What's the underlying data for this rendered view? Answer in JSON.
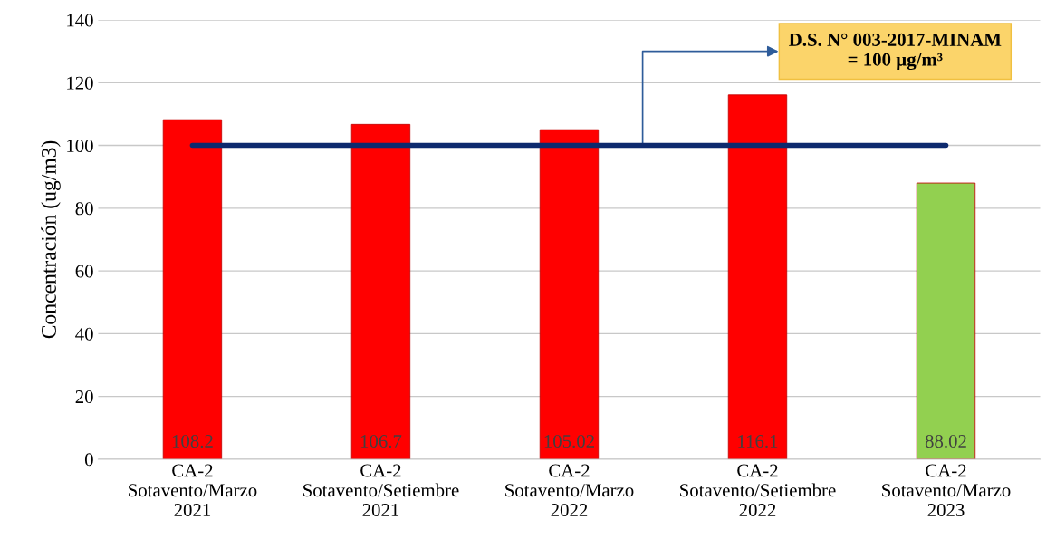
{
  "chart_data": {
    "type": "bar",
    "ylabel": "Concentración (ug/m3)",
    "categories": [
      "CA-2\nSotavento/Marzo\n2021",
      "CA-2\nSotavento/Setiembre\n2021",
      "CA-2\nSotavento/Marzo\n2022",
      "CA-2\nSotavento/Setiembre\n2022",
      "CA-2\nSotavento/Marzo\n2023"
    ],
    "values": [
      108.2,
      106.7,
      105.02,
      116.1,
      88.02
    ],
    "colors": [
      "#ff0000",
      "#ff0000",
      "#ff0000",
      "#ff0000",
      "#92d050"
    ],
    "data_labels": true,
    "ylim": [
      0,
      140
    ],
    "yticks": [
      0,
      20,
      40,
      60,
      80,
      100,
      120,
      140
    ],
    "grid": "y",
    "ref_lines": [
      {
        "axis": "y",
        "value": 100,
        "label": "D.S. N° 003-2017-MINAM\n= 100 µg/m³",
        "color": "#0d2a6e"
      }
    ]
  }
}
